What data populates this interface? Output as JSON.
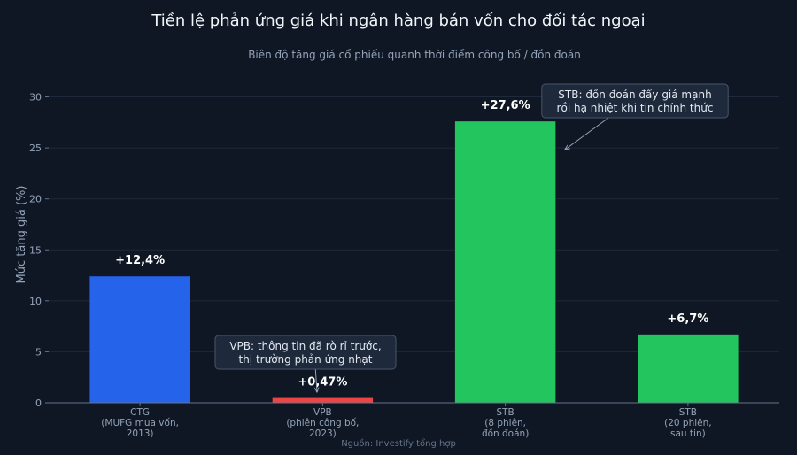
{
  "chart_data": {
    "type": "bar",
    "title": "Tiền lệ phản ứng giá khi ngân hàng bán vốn cho đối tác ngoại",
    "subtitle": "Biên độ tăng giá cổ phiếu quanh thời điểm công bố / đồn đoán",
    "ylabel": "Mức tăng giá (%)",
    "xlabel": "",
    "ylim": [
      0,
      33
    ],
    "yticks": [
      0,
      5,
      10,
      15,
      20,
      25,
      30
    ],
    "grid": true,
    "source": "Nguồn: Investify tổng hợp",
    "categories": [
      [
        "CTG",
        "(MUFG mua vốn,",
        "2013)"
      ],
      [
        "VPB",
        "(phiên công bố,",
        "2023)"
      ],
      [
        "STB",
        "(8 phiên,",
        "đồn đoán)"
      ],
      [
        "STB",
        "(20 phiên,",
        "sau tin)"
      ]
    ],
    "values": [
      12.4,
      0.47,
      27.6,
      6.7
    ],
    "value_labels": [
      "+12,4%",
      "+0,47%",
      "+27,6%",
      "+6,7%"
    ],
    "colors": [
      "#2563eb",
      "#ef4444",
      "#22c55e",
      "#22c55e"
    ],
    "annotations": [
      {
        "lines": [
          "VPB: thông tin đã rò rỉ trước,",
          "thị trường phản ứng nhạt"
        ],
        "target_index": 1
      },
      {
        "lines": [
          "STB: đồn đoán đẩy giá mạnh",
          "rồi hạ nhiệt khi tin chính thức"
        ],
        "target_index": 2
      }
    ]
  }
}
